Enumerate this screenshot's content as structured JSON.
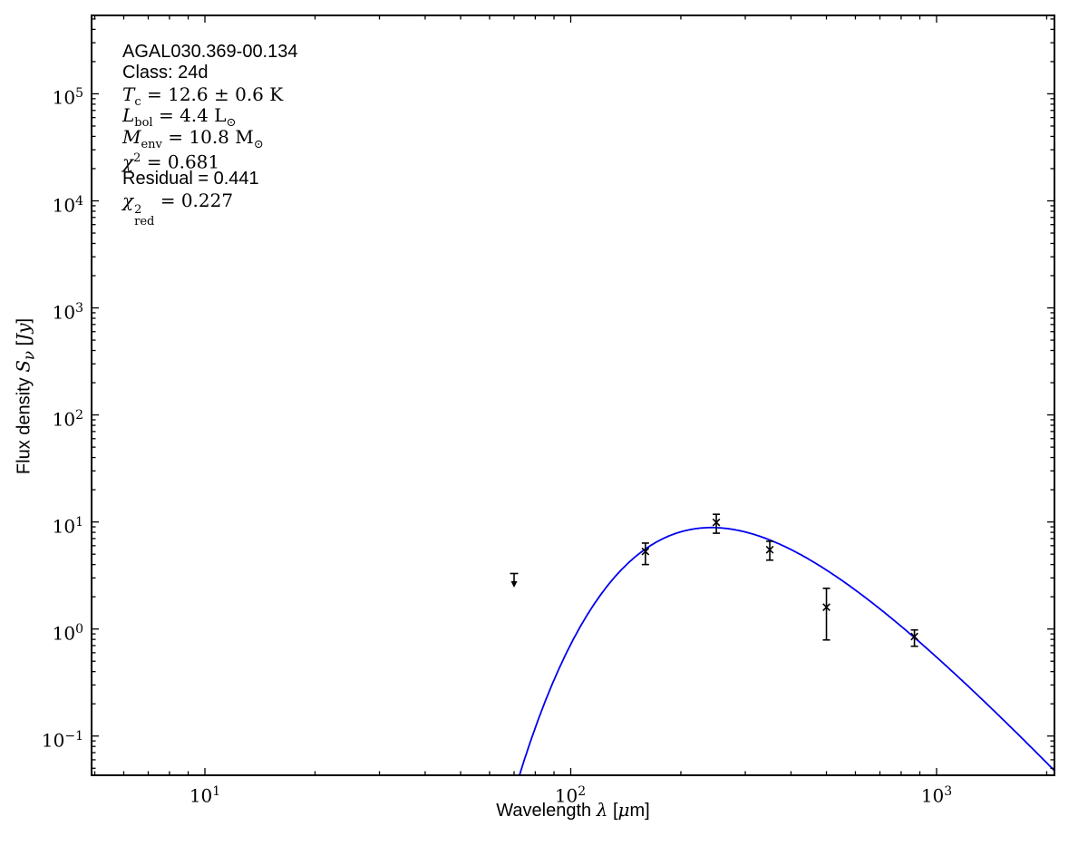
{
  "figure": {
    "background": "#ffffff",
    "annotation_lines": [
      {
        "markup": "AGAL030.369-00.134",
        "style": "sans"
      },
      {
        "markup": "Class: 24d",
        "style": "sans"
      },
      {
        "markup": "*T*_{c} = 12.6 ± 0.6 K",
        "style": "math"
      },
      {
        "markup": "*L*_{bol} = 4.4 L_{⊙}",
        "style": "math"
      },
      {
        "markup": "*M*_{env} = 10.8 M_{⊙}",
        "style": "math"
      },
      {
        "markup": "*χ*^{2} = 0.681",
        "style": "math"
      },
      {
        "markup": "Residual = 0.441",
        "style": "sans"
      },
      {
        "markup": "*χ*^{2}_{red} = 0.227",
        "style": "math"
      }
    ]
  },
  "chart_data": {
    "type": "scatter",
    "title": "",
    "xlabel_markup": "Wavelength *λ* [*μ*m]",
    "ylabel_markup": "Flux density *S*_{*ν*} [*Jy*]",
    "xscale": "log",
    "yscale": "log",
    "xlim": [
      4.9,
      2100
    ],
    "ylim": [
      0.043,
      540000
    ],
    "grid": false,
    "legend": "none",
    "x_ticks": [
      {
        "value": 10,
        "exp": "1"
      },
      {
        "value": 100,
        "exp": "2"
      },
      {
        "value": 1000,
        "exp": "3"
      }
    ],
    "y_ticks": [
      {
        "value": 100000,
        "exp": "5"
      },
      {
        "value": 10000,
        "exp": "4"
      },
      {
        "value": 1000,
        "exp": "3"
      },
      {
        "value": 100,
        "exp": "2"
      },
      {
        "value": 10,
        "exp": "1"
      },
      {
        "value": 1,
        "exp": "0"
      },
      {
        "value": 0.1,
        "exp": "−1"
      }
    ],
    "points": [
      {
        "wavelength_um": 160,
        "flux_jy": 5.3,
        "err_plus": 1.05,
        "err_minus": 1.3,
        "marker": "x",
        "color": "#000000"
      },
      {
        "wavelength_um": 250,
        "flux_jy": 9.9,
        "err_plus": 1.9,
        "err_minus": 2.05,
        "marker": "x",
        "color": "#000000"
      },
      {
        "wavelength_um": 350,
        "flux_jy": 5.5,
        "err_plus": 1.1,
        "err_minus": 1.1,
        "marker": "x",
        "color": "#000000"
      },
      {
        "wavelength_um": 500,
        "flux_jy": 1.6,
        "err_plus": 0.8,
        "err_minus": 0.81,
        "marker": "x",
        "color": "#000000"
      },
      {
        "wavelength_um": 870,
        "flux_jy": 0.85,
        "err_plus": 0.13,
        "err_minus": 0.16,
        "marker": "x",
        "color": "#000000"
      }
    ],
    "upper_limits": [
      {
        "wavelength_um": 70,
        "flux_jy": 3.3,
        "arrow_to_jy": 2.44,
        "color": "#000000"
      }
    ],
    "model_curve": {
      "name": "greybody-fit",
      "color": "#0000ee",
      "T_K": 12.6,
      "beta": 1.75,
      "logA": 14.316,
      "hck_over_T": 1141.9
    }
  }
}
